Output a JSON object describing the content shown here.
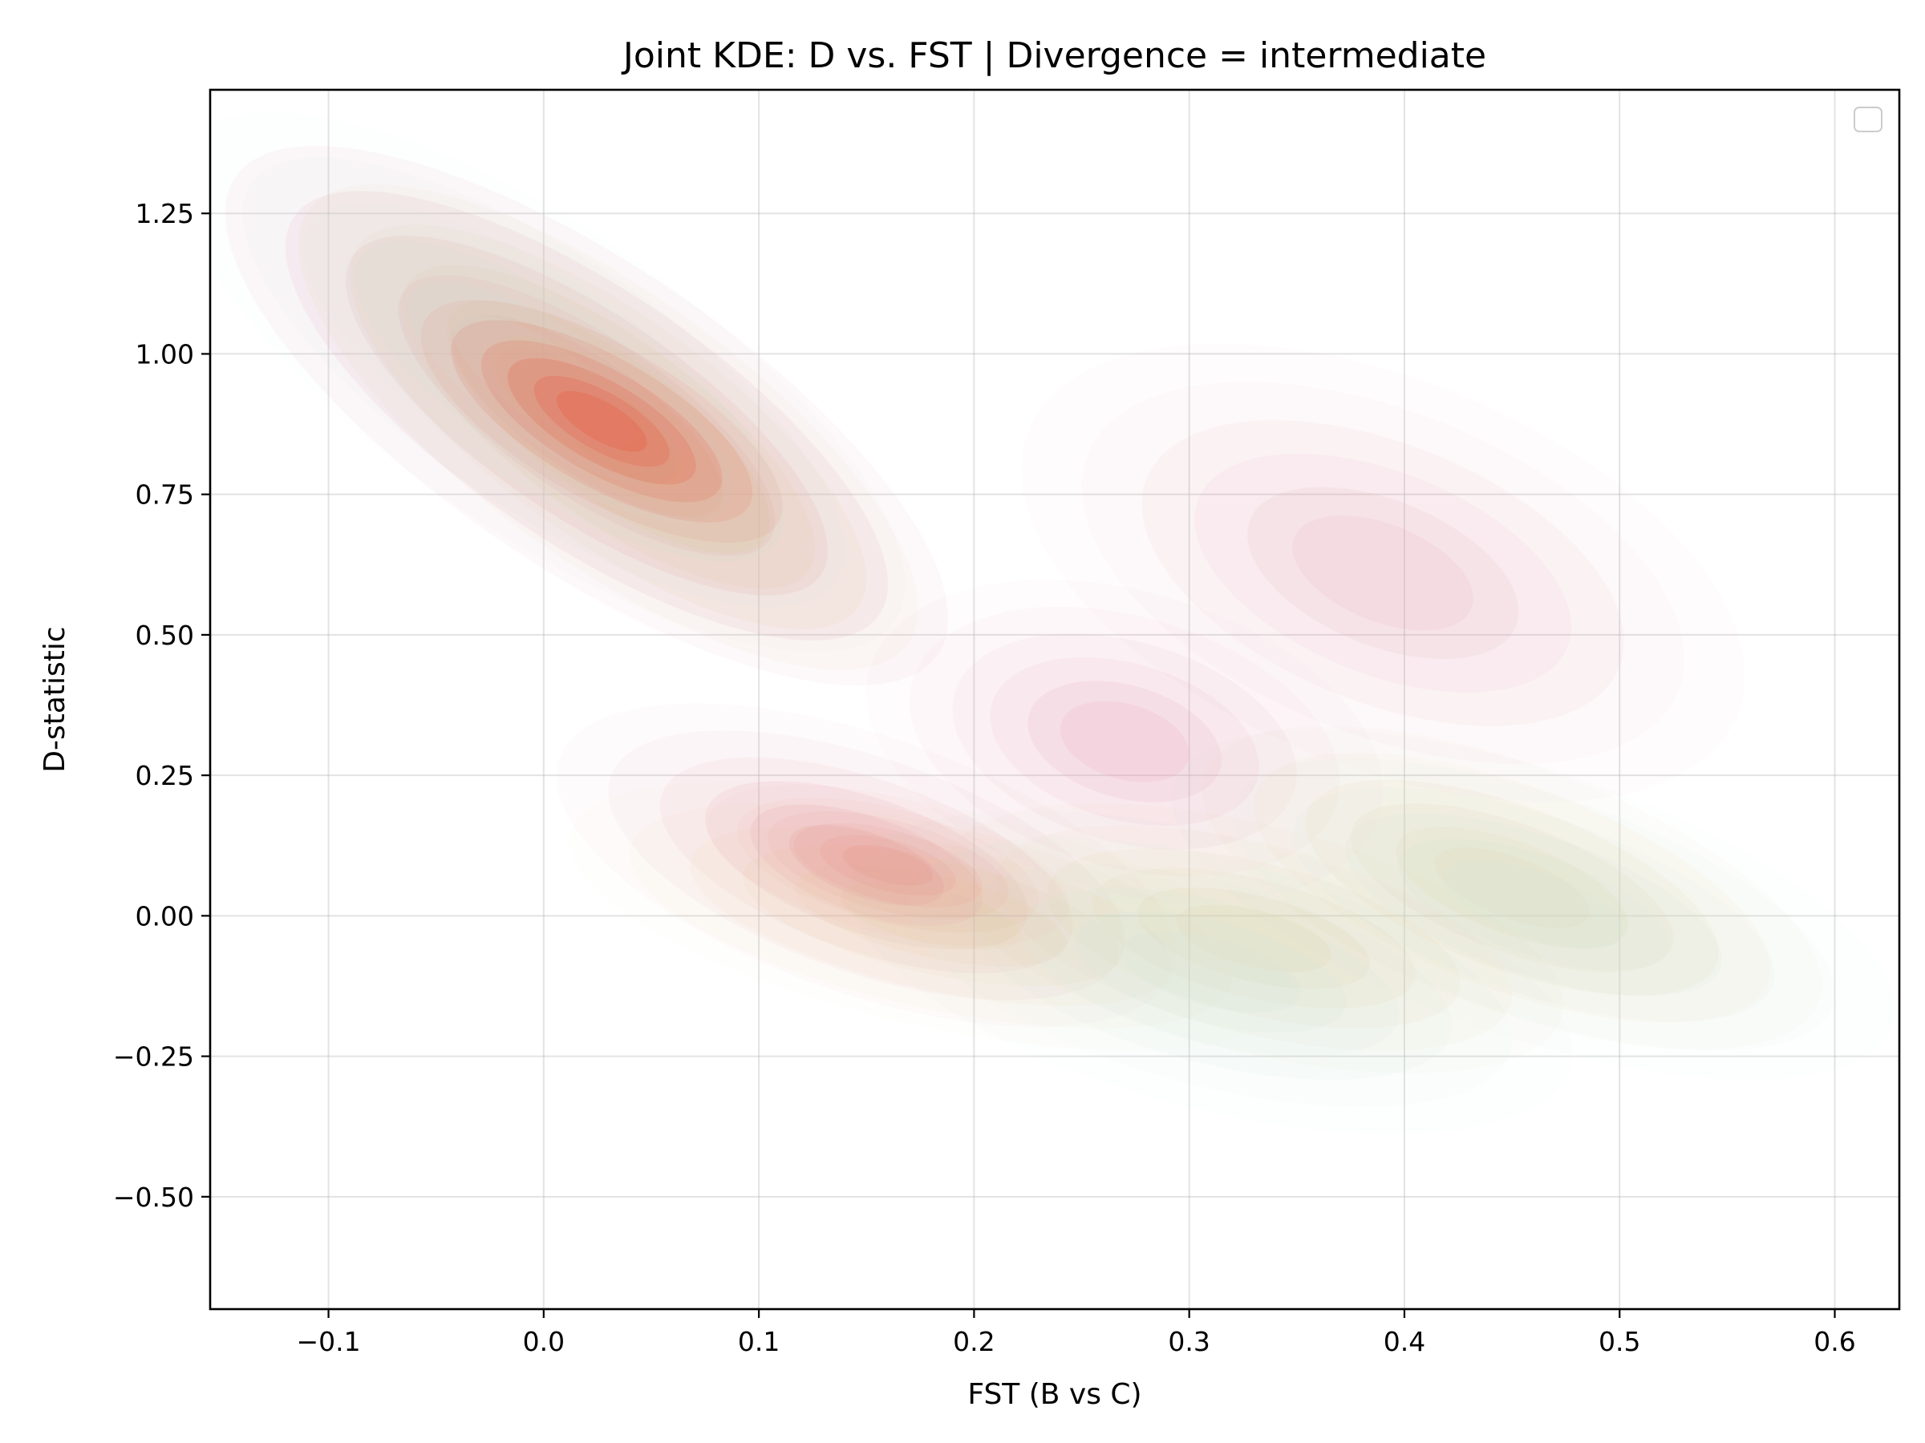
{
  "chart_data": {
    "type": "kde-contour",
    "title": "Joint KDE: D vs. FST | Divergence = intermediate",
    "xlabel": "FST (B vs C)",
    "ylabel": "D-statistic",
    "xlim": [
      -0.155,
      0.63
    ],
    "ylim": [
      -0.7,
      1.47
    ],
    "x_ticks": [
      -0.1,
      0.0,
      0.1,
      0.2,
      0.3,
      0.4,
      0.5,
      0.6
    ],
    "x_tick_labels": [
      "−0.1",
      "0.0",
      "0.1",
      "0.2",
      "0.3",
      "0.4",
      "0.5",
      "0.6"
    ],
    "y_ticks": [
      -0.5,
      -0.25,
      0.0,
      0.25,
      0.5,
      0.75,
      1.0,
      1.25
    ],
    "y_tick_labels": [
      "−0.50",
      "−0.25",
      "0.00",
      "0.25",
      "0.50",
      "0.75",
      "1.00",
      "1.25"
    ],
    "grid": true,
    "legend": {
      "placement": "top-right",
      "entries": []
    },
    "series": [
      {
        "color": "#e8a0b4",
        "modes": [
          {
            "x": 0.02,
            "y": 0.89,
            "sx": 0.07,
            "sy": 0.2,
            "rho": -0.75,
            "w": 1.0
          },
          {
            "x": 0.15,
            "y": 0.09,
            "sx": 0.06,
            "sy": 0.12,
            "rho": -0.55,
            "w": 0.55
          },
          {
            "x": 0.27,
            "y": 0.31,
            "sx": 0.05,
            "sy": 0.12,
            "rho": -0.3,
            "w": 0.45
          },
          {
            "x": 0.39,
            "y": 0.61,
            "sx": 0.07,
            "sy": 0.17,
            "rho": -0.45,
            "w": 0.4
          }
        ]
      },
      {
        "color": "#e6c98f",
        "modes": [
          {
            "x": 0.03,
            "y": 0.87,
            "sx": 0.06,
            "sy": 0.18,
            "rho": -0.75,
            "w": 0.9
          },
          {
            "x": 0.18,
            "y": 0.0,
            "sx": 0.07,
            "sy": 0.1,
            "rho": -0.55,
            "w": 0.35
          },
          {
            "x": 0.33,
            "y": -0.04,
            "sx": 0.06,
            "sy": 0.1,
            "rho": -0.5,
            "w": 0.45
          },
          {
            "x": 0.45,
            "y": 0.05,
            "sx": 0.06,
            "sy": 0.12,
            "rho": -0.6,
            "w": 0.5
          }
        ]
      },
      {
        "color": "#cfe6dc",
        "modes": [
          {
            "x": 0.0,
            "y": 0.95,
            "sx": 0.07,
            "sy": 0.2,
            "rho": -0.75,
            "w": 0.55
          },
          {
            "x": 0.31,
            "y": -0.1,
            "sx": 0.07,
            "sy": 0.12,
            "rho": -0.5,
            "w": 0.45
          },
          {
            "x": 0.46,
            "y": 0.02,
            "sx": 0.07,
            "sy": 0.13,
            "rho": -0.6,
            "w": 0.5
          }
        ]
      },
      {
        "color": "#e55c45",
        "modes": [
          {
            "x": 0.027,
            "y": 0.88,
            "sx": 0.035,
            "sy": 0.09,
            "rho": -0.7,
            "w": 1.0
          },
          {
            "x": 0.16,
            "y": 0.09,
            "sx": 0.035,
            "sy": 0.06,
            "rho": -0.5,
            "w": 0.25
          }
        ]
      }
    ]
  }
}
